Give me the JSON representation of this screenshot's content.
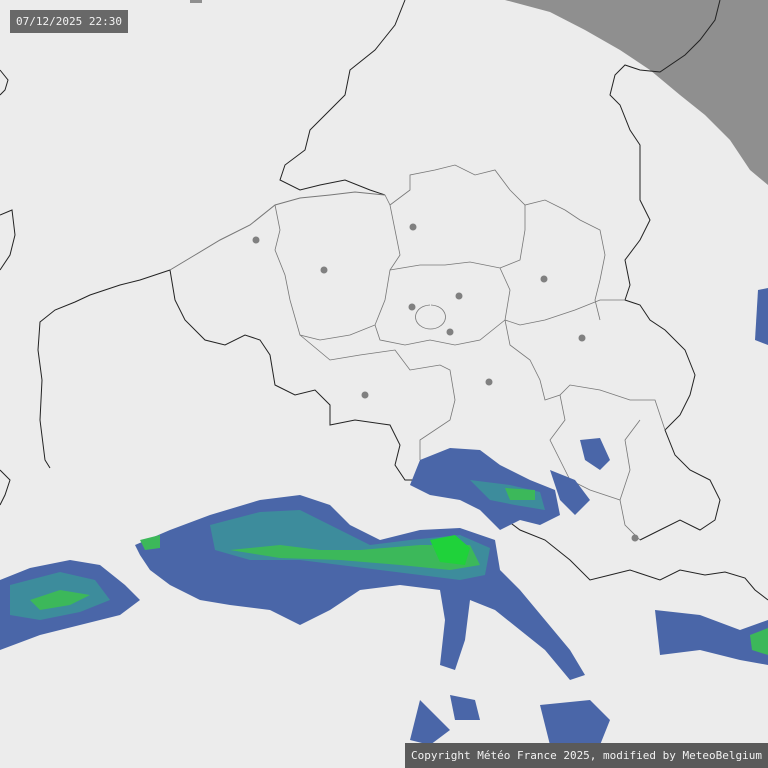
{
  "timestamp": "07/12/2025 22:30",
  "copyright": "Copyright Météo France 2025, modified by MeteoBelgium",
  "map": {
    "type": "precipitation-radar",
    "colors": {
      "background": "#ececec",
      "out_of_range": "#8f8f8f",
      "borders": "#222222",
      "provinces": "#777777",
      "city_marker": "#808080",
      "rain_light": "#4a66a8",
      "rain_moderate": "#3d8c9c",
      "rain_heavy": "#3cb85a",
      "rain_intense": "#1fd23a"
    }
  }
}
